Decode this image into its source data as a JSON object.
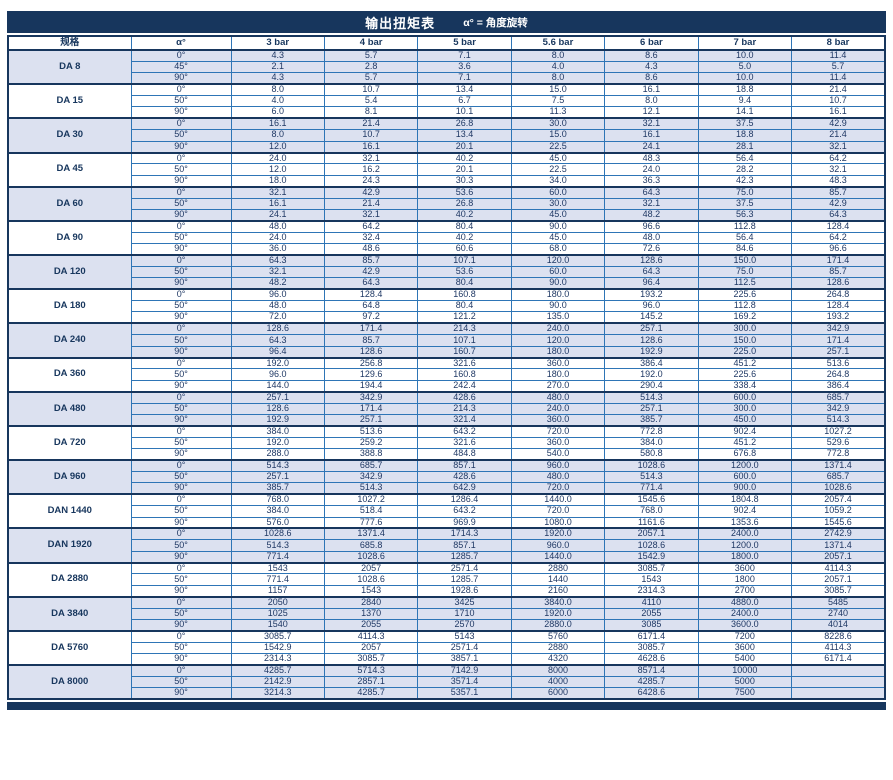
{
  "page": {
    "title": "输出扭矩表",
    "subtitle": "α° = 角度旋转"
  },
  "colors": {
    "header_navy": "#17365d",
    "grid_blue": "#2e75b6",
    "shaded_row": "#dce1f0",
    "text_navy": "#1f3864"
  },
  "table": {
    "columns": [
      "规格",
      "α°",
      "3 bar",
      "4 bar",
      "5 bar",
      "5.6 bar",
      "6 bar",
      "7 bar",
      "8 bar"
    ],
    "groups": [
      {
        "model": "DA 8",
        "shaded": true,
        "rows": [
          {
            "angle": "0°",
            "values": [
              "4.3",
              "5.7",
              "7.1",
              "8.0",
              "8.6",
              "10.0",
              "11.4"
            ]
          },
          {
            "angle": "45°",
            "values": [
              "2.1",
              "2.8",
              "3.6",
              "4.0",
              "4.3",
              "5.0",
              "5.7"
            ]
          },
          {
            "angle": "90°",
            "values": [
              "4.3",
              "5.7",
              "7.1",
              "8.0",
              "8.6",
              "10.0",
              "11.4"
            ]
          }
        ]
      },
      {
        "model": "DA 15",
        "shaded": false,
        "rows": [
          {
            "angle": "0°",
            "values": [
              "8.0",
              "10.7",
              "13.4",
              "15.0",
              "16.1",
              "18.8",
              "21.4"
            ]
          },
          {
            "angle": "50°",
            "values": [
              "4.0",
              "5.4",
              "6.7",
              "7.5",
              "8.0",
              "9.4",
              "10.7"
            ]
          },
          {
            "angle": "90°",
            "values": [
              "6.0",
              "8.1",
              "10.1",
              "11.3",
              "12.1",
              "14.1",
              "16.1"
            ]
          }
        ]
      },
      {
        "model": "DA 30",
        "shaded": true,
        "rows": [
          {
            "angle": "0°",
            "values": [
              "16.1",
              "21.4",
              "26.8",
              "30.0",
              "32.1",
              "37.5",
              "42.9"
            ]
          },
          {
            "angle": "50°",
            "values": [
              "8.0",
              "10.7",
              "13.4",
              "15.0",
              "16.1",
              "18.8",
              "21.4"
            ]
          },
          {
            "angle": "90°",
            "values": [
              "12.0",
              "16.1",
              "20.1",
              "22.5",
              "24.1",
              "28.1",
              "32.1"
            ]
          }
        ]
      },
      {
        "model": "DA 45",
        "shaded": false,
        "rows": [
          {
            "angle": "0°",
            "values": [
              "24.0",
              "32.1",
              "40.2",
              "45.0",
              "48.3",
              "56.4",
              "64.2"
            ]
          },
          {
            "angle": "50°",
            "values": [
              "12.0",
              "16.2",
              "20.1",
              "22.5",
              "24.0",
              "28.2",
              "32.1"
            ]
          },
          {
            "angle": "90°",
            "values": [
              "18.0",
              "24.3",
              "30.3",
              "34.0",
              "36.3",
              "42.3",
              "48.3"
            ]
          }
        ]
      },
      {
        "model": "DA 60",
        "shaded": true,
        "rows": [
          {
            "angle": "0°",
            "values": [
              "32.1",
              "42.9",
              "53.6",
              "60.0",
              "64.3",
              "75.0",
              "85.7"
            ]
          },
          {
            "angle": "50°",
            "values": [
              "16.1",
              "21.4",
              "26.8",
              "30.0",
              "32.1",
              "37.5",
              "42.9"
            ]
          },
          {
            "angle": "90°",
            "values": [
              "24.1",
              "32.1",
              "40.2",
              "45.0",
              "48.2",
              "56.3",
              "64.3"
            ]
          }
        ]
      },
      {
        "model": "DA 90",
        "shaded": false,
        "rows": [
          {
            "angle": "0°",
            "values": [
              "48.0",
              "64.2",
              "80.4",
              "90.0",
              "96.6",
              "112.8",
              "128.4"
            ]
          },
          {
            "angle": "50°",
            "values": [
              "24.0",
              "32.4",
              "40.2",
              "45.0",
              "48.0",
              "56.4",
              "64.2"
            ]
          },
          {
            "angle": "90°",
            "values": [
              "36.0",
              "48.6",
              "60.6",
              "68.0",
              "72.6",
              "84.6",
              "96.6"
            ]
          }
        ]
      },
      {
        "model": "DA 120",
        "shaded": true,
        "rows": [
          {
            "angle": "0°",
            "values": [
              "64.3",
              "85.7",
              "107.1",
              "120.0",
              "128.6",
              "150.0",
              "171.4"
            ]
          },
          {
            "angle": "50°",
            "values": [
              "32.1",
              "42.9",
              "53.6",
              "60.0",
              "64.3",
              "75.0",
              "85.7"
            ]
          },
          {
            "angle": "90°",
            "values": [
              "48.2",
              "64.3",
              "80.4",
              "90.0",
              "96.4",
              "112.5",
              "128.6"
            ]
          }
        ]
      },
      {
        "model": "DA 180",
        "shaded": false,
        "rows": [
          {
            "angle": "0°",
            "values": [
              "96.0",
              "128.4",
              "160.8",
              "180.0",
              "193.2",
              "225.6",
              "264.8"
            ]
          },
          {
            "angle": "50°",
            "values": [
              "48.0",
              "64.8",
              "80.4",
              "90.0",
              "96.0",
              "112.8",
              "128.4"
            ]
          },
          {
            "angle": "90°",
            "values": [
              "72.0",
              "97.2",
              "121.2",
              "135.0",
              "145.2",
              "169.2",
              "193.2"
            ]
          }
        ]
      },
      {
        "model": "DA 240",
        "shaded": true,
        "rows": [
          {
            "angle": "0°",
            "values": [
              "128.6",
              "171.4",
              "214.3",
              "240.0",
              "257.1",
              "300.0",
              "342.9"
            ]
          },
          {
            "angle": "50°",
            "values": [
              "64.3",
              "85.7",
              "107.1",
              "120.0",
              "128.6",
              "150.0",
              "171.4"
            ]
          },
          {
            "angle": "90°",
            "values": [
              "96.4",
              "128.6",
              "160.7",
              "180.0",
              "192.9",
              "225.0",
              "257.1"
            ]
          }
        ]
      },
      {
        "model": "DA 360",
        "shaded": false,
        "rows": [
          {
            "angle": "0°",
            "values": [
              "192.0",
              "256.8",
              "321.6",
              "360.0",
              "386.4",
              "451.2",
              "513.6"
            ]
          },
          {
            "angle": "50°",
            "values": [
              "96.0",
              "129.6",
              "160.8",
              "180.0",
              "192.0",
              "225.6",
              "264.8"
            ]
          },
          {
            "angle": "90°",
            "values": [
              "144.0",
              "194.4",
              "242.4",
              "270.0",
              "290.4",
              "338.4",
              "386.4"
            ]
          }
        ]
      },
      {
        "model": "DA 480",
        "shaded": true,
        "rows": [
          {
            "angle": "0°",
            "values": [
              "257.1",
              "342.9",
              "428.6",
              "480.0",
              "514.3",
              "600.0",
              "685.7"
            ]
          },
          {
            "angle": "50°",
            "values": [
              "128.6",
              "171.4",
              "214.3",
              "240.0",
              "257.1",
              "300.0",
              "342.9"
            ]
          },
          {
            "angle": "90°",
            "values": [
              "192.9",
              "257.1",
              "321.4",
              "360.0",
              "385.7",
              "450.0",
              "514.3"
            ]
          }
        ]
      },
      {
        "model": "DA 720",
        "shaded": false,
        "rows": [
          {
            "angle": "0°",
            "values": [
              "384.0",
              "513.6",
              "643.2",
              "720.0",
              "772.8",
              "902.4",
              "1027.2"
            ]
          },
          {
            "angle": "50°",
            "values": [
              "192.0",
              "259.2",
              "321.6",
              "360.0",
              "384.0",
              "451.2",
              "529.6"
            ]
          },
          {
            "angle": "90°",
            "values": [
              "288.0",
              "388.8",
              "484.8",
              "540.0",
              "580.8",
              "676.8",
              "772.8"
            ]
          }
        ]
      },
      {
        "model": "DA 960",
        "shaded": true,
        "rows": [
          {
            "angle": "0°",
            "values": [
              "514.3",
              "685.7",
              "857.1",
              "960.0",
              "1028.6",
              "1200.0",
              "1371.4"
            ]
          },
          {
            "angle": "50°",
            "values": [
              "257.1",
              "342.9",
              "428.6",
              "480.0",
              "514.3",
              "600.0",
              "685.7"
            ]
          },
          {
            "angle": "90°",
            "values": [
              "385.7",
              "514.3",
              "642.9",
              "720.0",
              "771.4",
              "900.0",
              "1028.6"
            ]
          }
        ]
      },
      {
        "model": "DAN 1440",
        "shaded": false,
        "rows": [
          {
            "angle": "0°",
            "values": [
              "768.0",
              "1027.2",
              "1286.4",
              "1440.0",
              "1545.6",
              "1804.8",
              "2057.4"
            ]
          },
          {
            "angle": "50°",
            "values": [
              "384.0",
              "518.4",
              "643.2",
              "720.0",
              "768.0",
              "902.4",
              "1059.2"
            ]
          },
          {
            "angle": "90°",
            "values": [
              "576.0",
              "777.6",
              "969.9",
              "1080.0",
              "1161.6",
              "1353.6",
              "1545.6"
            ]
          }
        ]
      },
      {
        "model": "DAN 1920",
        "shaded": true,
        "rows": [
          {
            "angle": "0°",
            "values": [
              "1028.6",
              "1371.4",
              "1714.3",
              "1920.0",
              "2057.1",
              "2400.0",
              "2742.9"
            ]
          },
          {
            "angle": "50°",
            "values": [
              "514.3",
              "685.8",
              "857.1",
              "960.0",
              "1028.6",
              "1200.0",
              "1371.4"
            ]
          },
          {
            "angle": "90°",
            "values": [
              "771.4",
              "1028.6",
              "1285.7",
              "1440.0",
              "1542.9",
              "1800.0",
              "2057.1"
            ]
          }
        ]
      },
      {
        "model": "DA 2880",
        "shaded": false,
        "rows": [
          {
            "angle": "0°",
            "values": [
              "1543",
              "2057",
              "2571.4",
              "2880",
              "3085.7",
              "3600",
              "4114.3"
            ]
          },
          {
            "angle": "50°",
            "values": [
              "771.4",
              "1028.6",
              "1285.7",
              "1440",
              "1543",
              "1800",
              "2057.1"
            ]
          },
          {
            "angle": "90°",
            "values": [
              "1157",
              "1543",
              "1928.6",
              "2160",
              "2314.3",
              "2700",
              "3085.7"
            ]
          }
        ]
      },
      {
        "model": "DA 3840",
        "shaded": true,
        "rows": [
          {
            "angle": "0°",
            "values": [
              "2050",
              "2840",
              "3425",
              "3840.0",
              "4110",
              "4880.0",
              "5485"
            ]
          },
          {
            "angle": "50°",
            "values": [
              "1025",
              "1370",
              "1710",
              "1920.0",
              "2055",
              "2400.0",
              "2740"
            ]
          },
          {
            "angle": "90°",
            "values": [
              "1540",
              "2055",
              "2570",
              "2880.0",
              "3085",
              "3600.0",
              "4014"
            ]
          }
        ]
      },
      {
        "model": "DA 5760",
        "shaded": false,
        "rows": [
          {
            "angle": "0°",
            "values": [
              "3085.7",
              "4114.3",
              "5143",
              "5760",
              "6171.4",
              "7200",
              "8228.6"
            ]
          },
          {
            "angle": "50°",
            "values": [
              "1542.9",
              "2057",
              "2571.4",
              "2880",
              "3085.7",
              "3600",
              "4114.3"
            ]
          },
          {
            "angle": "90°",
            "values": [
              "2314.3",
              "3085.7",
              "3857.1",
              "4320",
              "4628.6",
              "5400",
              "6171.4"
            ]
          }
        ]
      },
      {
        "model": "DA 8000",
        "shaded": true,
        "rows": [
          {
            "angle": "0°",
            "values": [
              "4285.7",
              "5714.3",
              "7142.9",
              "8000",
              "8571.4",
              "10000",
              ""
            ]
          },
          {
            "angle": "50°",
            "values": [
              "2142.9",
              "2857.1",
              "3571.4",
              "4000",
              "4285.7",
              "5000",
              ""
            ]
          },
          {
            "angle": "90°",
            "values": [
              "3214.3",
              "4285.7",
              "5357.1",
              "6000",
              "6428.6",
              "7500",
              ""
            ]
          }
        ]
      }
    ]
  }
}
